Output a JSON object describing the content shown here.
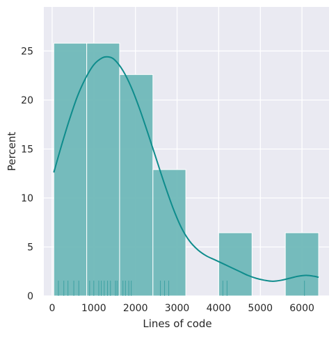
{
  "chart_data": {
    "type": "bar",
    "subtype": "histogram-with-kde-and-rug",
    "title": "",
    "xlabel": "Lines of code",
    "ylabel": "Percent",
    "xlim": [
      -200,
      6650
    ],
    "ylim": [
      0,
      29.5
    ],
    "xticks": [
      0,
      1000,
      2000,
      3000,
      4000,
      5000,
      6000
    ],
    "yticks": [
      0,
      5,
      10,
      15,
      20,
      25
    ],
    "xtick_labels": [
      "0",
      "1000",
      "2000",
      "3000",
      "4000",
      "5000",
      "6000"
    ],
    "ytick_labels": [
      "0",
      "5",
      "10",
      "15",
      "20",
      "25"
    ],
    "grid": true,
    "bins": [
      {
        "x0": 40,
        "x1": 830,
        "value": 25.8
      },
      {
        "x0": 830,
        "x1": 1620,
        "value": 25.8
      },
      {
        "x0": 1620,
        "x1": 2420,
        "value": 22.6
      },
      {
        "x0": 2420,
        "x1": 3210,
        "value": 12.9
      },
      {
        "x0": 3210,
        "x1": 4000,
        "value": 0
      },
      {
        "x0": 4000,
        "x1": 4800,
        "value": 6.45
      },
      {
        "x0": 4800,
        "x1": 5600,
        "value": 0
      },
      {
        "x0": 5600,
        "x1": 6400,
        "value": 6.45
      }
    ],
    "kde": {
      "x": [
        40,
        200,
        400,
        600,
        800,
        1000,
        1200,
        1350,
        1500,
        1700,
        1900,
        2100,
        2300,
        2500,
        2700,
        2900,
        3100,
        3300,
        3500,
        3700,
        3900,
        4100,
        4300,
        4500,
        4700,
        4900,
        5100,
        5300,
        5500,
        5700,
        5900,
        6100,
        6300,
        6400
      ],
      "y": [
        12.6,
        15.0,
        17.8,
        20.3,
        22.2,
        23.6,
        24.3,
        24.4,
        24.1,
        23.0,
        21.3,
        19.1,
        16.6,
        14.0,
        11.4,
        9.0,
        7.0,
        5.6,
        4.7,
        4.1,
        3.7,
        3.3,
        2.9,
        2.5,
        2.1,
        1.8,
        1.6,
        1.5,
        1.6,
        1.8,
        2.0,
        2.1,
        2.0,
        1.9
      ]
    },
    "rug": [
      150,
      280,
      380,
      520,
      640,
      900,
      1000,
      1120,
      1180,
      1250,
      1330,
      1400,
      1520,
      1560,
      1700,
      1760,
      1840,
      1900,
      2600,
      2700,
      2800,
      4100,
      4200,
      6060
    ]
  },
  "colors": {
    "background": "#eaeaf2",
    "grid": "#ffffff",
    "bar_fill": "#6fb8b8",
    "bar_edge": "#ffffff",
    "kde_line": "#0e8c8c",
    "rug": "#0e8c8c",
    "text": "#262626"
  }
}
